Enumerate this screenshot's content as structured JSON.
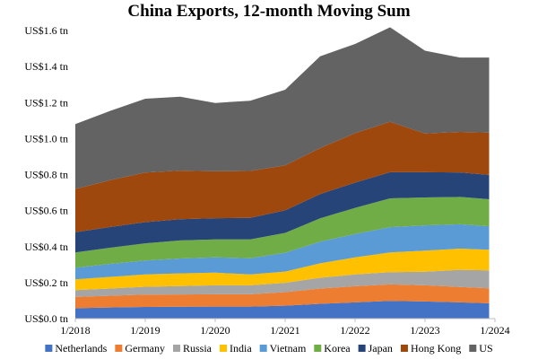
{
  "chart_data": {
    "type": "area",
    "stacked": true,
    "title": "China Exports, 12-month Moving Sum",
    "xlabel": "",
    "ylabel": "",
    "x_range": [
      "2018-01",
      "2024-01"
    ],
    "ylim": [
      0,
      1.6
    ],
    "x_ticks": [
      {
        "date": "2018-01",
        "label": "1/2018"
      },
      {
        "date": "2019-01",
        "label": "1/2019"
      },
      {
        "date": "2020-01",
        "label": "1/2020"
      },
      {
        "date": "2021-01",
        "label": "1/2021"
      },
      {
        "date": "2022-01",
        "label": "1/2022"
      },
      {
        "date": "2023-01",
        "label": "1/2023"
      },
      {
        "date": "2024-01",
        "label": "1/2024"
      }
    ],
    "y_ticks": [
      {
        "value": 0.0,
        "label": "US$0.0 tn"
      },
      {
        "value": 0.2,
        "label": "US$0.2 tn"
      },
      {
        "value": 0.4,
        "label": "US$0.4 tn"
      },
      {
        "value": 0.6,
        "label": "US$0.6 tn"
      },
      {
        "value": 0.8,
        "label": "US$0.8 tn"
      },
      {
        "value": 1.0,
        "label": "US$1.0 tn"
      },
      {
        "value": 1.2,
        "label": "US$1.2 tn"
      },
      {
        "value": 1.4,
        "label": "US$1.4 tn"
      },
      {
        "value": 1.6,
        "label": "US$1.6 tn"
      }
    ],
    "grid": false,
    "legend_position": "bottom",
    "x": [
      "2018-01",
      "2018-07",
      "2019-01",
      "2019-07",
      "2020-01",
      "2020-07",
      "2021-01",
      "2021-07",
      "2022-01",
      "2022-07",
      "2023-01",
      "2023-07",
      "2023-12"
    ],
    "series": [
      {
        "name": "Netherlands",
        "color": "#4472c4",
        "values": [
          0.058,
          0.062,
          0.065,
          0.066,
          0.067,
          0.067,
          0.072,
          0.082,
          0.09,
          0.098,
          0.095,
          0.09,
          0.085
        ]
      },
      {
        "name": "Germany",
        "color": "#ed7d31",
        "values": [
          0.062,
          0.065,
          0.068,
          0.068,
          0.068,
          0.068,
          0.075,
          0.085,
          0.09,
          0.092,
          0.09,
          0.086,
          0.083
        ]
      },
      {
        "name": "Russia",
        "color": "#a5a5a5",
        "values": [
          0.038,
          0.04,
          0.044,
          0.047,
          0.05,
          0.05,
          0.052,
          0.06,
          0.065,
          0.068,
          0.075,
          0.095,
          0.1
        ]
      },
      {
        "name": "India",
        "color": "#ffc000",
        "values": [
          0.06,
          0.065,
          0.068,
          0.07,
          0.07,
          0.06,
          0.062,
          0.08,
          0.095,
          0.11,
          0.118,
          0.118,
          0.115
        ]
      },
      {
        "name": "Vietnam",
        "color": "#5b9bd5",
        "values": [
          0.065,
          0.072,
          0.078,
          0.083,
          0.085,
          0.09,
          0.105,
          0.12,
          0.13,
          0.14,
          0.14,
          0.135,
          0.13
        ]
      },
      {
        "name": "Korea",
        "color": "#70ad47",
        "values": [
          0.085,
          0.09,
          0.095,
          0.1,
          0.1,
          0.105,
          0.11,
          0.13,
          0.145,
          0.16,
          0.155,
          0.152,
          0.15
        ]
      },
      {
        "name": "Japan",
        "color": "#264478",
        "values": [
          0.112,
          0.115,
          0.118,
          0.118,
          0.118,
          0.12,
          0.125,
          0.135,
          0.14,
          0.145,
          0.14,
          0.136,
          0.135
        ]
      },
      {
        "name": "Hong Kong",
        "color": "#9e480e",
        "values": [
          0.24,
          0.26,
          0.275,
          0.27,
          0.26,
          0.26,
          0.25,
          0.255,
          0.275,
          0.28,
          0.215,
          0.225,
          0.235
        ]
      },
      {
        "name": "US",
        "color": "#636363",
        "values": [
          0.36,
          0.385,
          0.41,
          0.41,
          0.38,
          0.39,
          0.42,
          0.51,
          0.495,
          0.525,
          0.46,
          0.413,
          0.417
        ]
      }
    ]
  }
}
